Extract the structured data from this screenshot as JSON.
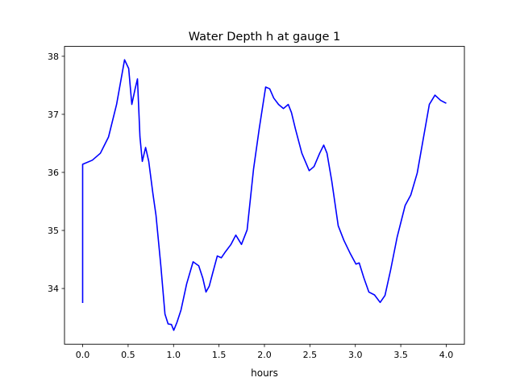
{
  "chart_data": {
    "type": "line",
    "title": "Water Depth h at gauge 1",
    "xlabel": "hours",
    "ylabel": "",
    "xlim": [
      -0.2,
      4.2
    ],
    "ylim": [
      33.04,
      38.17
    ],
    "xticks": [
      0.0,
      0.5,
      1.0,
      1.5,
      2.0,
      2.5,
      3.0,
      3.5,
      4.0
    ],
    "xtick_labels": [
      "0.0",
      "0.5",
      "1.0",
      "1.5",
      "2.0",
      "2.5",
      "3.0",
      "3.5",
      "4.0"
    ],
    "yticks": [
      34,
      35,
      36,
      37,
      38
    ],
    "ytick_labels": [
      "34",
      "35",
      "36",
      "37",
      "38"
    ],
    "grid": false,
    "series": [
      {
        "name": "h",
        "color": "#0000ff",
        "x": [
          0,
          0,
          0.106,
          0.195,
          0.284,
          0.373,
          0.461,
          0.506,
          0.541,
          0.577,
          0.603,
          0.63,
          0.656,
          0.692,
          0.727,
          0.772,
          0.807,
          0.86,
          0.905,
          0.94,
          0.976,
          1.002,
          1.038,
          1.082,
          1.144,
          1.215,
          1.277,
          1.321,
          1.357,
          1.392,
          1.428,
          1.481,
          1.525,
          1.57,
          1.632,
          1.685,
          1.747,
          1.809,
          1.88,
          1.942,
          2.013,
          2.058,
          2.102,
          2.155,
          2.209,
          2.262,
          2.297,
          2.341,
          2.412,
          2.492,
          2.546,
          2.608,
          2.652,
          2.688,
          2.741,
          2.812,
          2.874,
          2.945,
          3.007,
          3.042,
          3.095,
          3.149,
          3.211,
          3.273,
          3.326,
          3.388,
          3.459,
          3.548,
          3.61,
          3.681,
          3.743,
          3.814,
          3.876,
          3.938,
          4.0
        ],
        "y": [
          33.75,
          36.14,
          36.21,
          36.33,
          36.61,
          37.17,
          37.94,
          37.79,
          37.17,
          37.44,
          37.61,
          36.61,
          36.19,
          36.43,
          36.19,
          35.64,
          35.26,
          34.39,
          33.56,
          33.39,
          33.38,
          33.28,
          33.42,
          33.63,
          34.08,
          34.46,
          34.39,
          34.18,
          33.94,
          34.04,
          34.25,
          34.56,
          34.53,
          34.63,
          34.76,
          34.92,
          34.76,
          35.01,
          36.06,
          36.75,
          37.47,
          37.44,
          37.28,
          37.17,
          37.1,
          37.17,
          37.03,
          36.75,
          36.33,
          36.03,
          36.1,
          36.33,
          36.47,
          36.33,
          35.85,
          35.08,
          34.83,
          34.6,
          34.42,
          34.44,
          34.18,
          33.94,
          33.89,
          33.76,
          33.88,
          34.32,
          34.88,
          35.43,
          35.61,
          35.99,
          36.54,
          37.17,
          37.33,
          37.24,
          37.19
        ]
      }
    ]
  }
}
